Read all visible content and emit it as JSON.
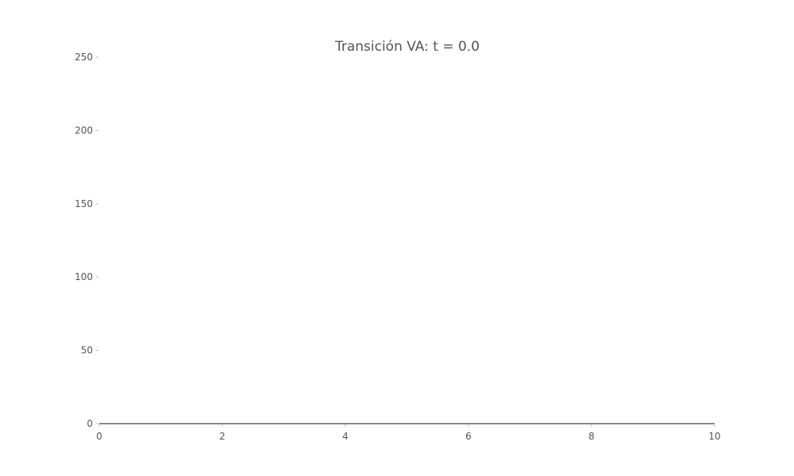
{
  "chart_data": {
    "type": "line",
    "title": "Transición VA: t = 0.0",
    "xlabel": "",
    "ylabel": "",
    "xlim": [
      0,
      10
    ],
    "ylim": [
      0,
      250
    ],
    "x_ticks": [
      0,
      2,
      4,
      6,
      8,
      10
    ],
    "y_ticks": [
      0,
      50,
      100,
      150,
      200,
      250
    ],
    "grid": false,
    "series": [
      {
        "x": [
          0,
          10
        ],
        "y": [
          0,
          0
        ],
        "color": "#444444"
      }
    ]
  }
}
